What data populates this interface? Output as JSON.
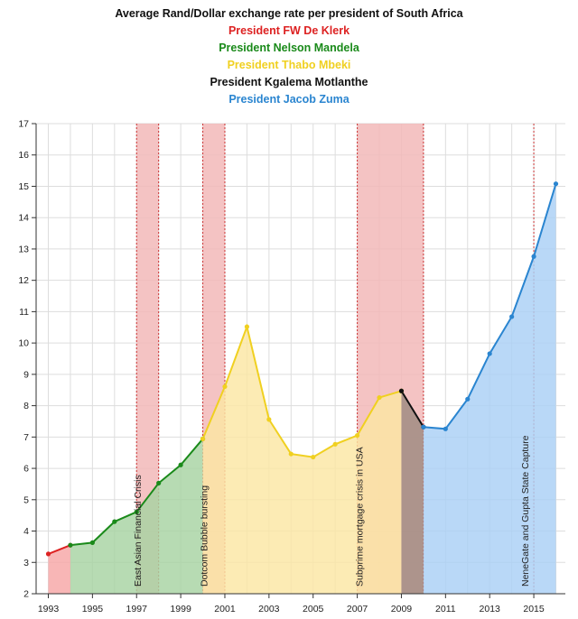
{
  "chart_data": {
    "type": "area",
    "title": "Average Rand/Dollar exchange rate per president of South Africa",
    "xlabel": "",
    "ylabel": "",
    "xlim": [
      1993,
      2016
    ],
    "ylim": [
      2,
      17
    ],
    "y_ticks": [
      2,
      3,
      4,
      5,
      6,
      7,
      8,
      9,
      10,
      11,
      12,
      13,
      14,
      15,
      16,
      17
    ],
    "x_ticks": [
      1993,
      1995,
      1997,
      1999,
      2001,
      2003,
      2005,
      2007,
      2009,
      2011,
      2013,
      2015
    ],
    "grid": true,
    "legend_placement": "top-center",
    "series": [
      {
        "name": "President FW De Klerk",
        "color": "#dd2222",
        "fill": "#f6a6a6",
        "x": [
          1993,
          1994
        ],
        "values": [
          3.27,
          3.55
        ]
      },
      {
        "name": "President Nelson Mandela",
        "color": "#1a8a1a",
        "fill": "#a7d3a2",
        "x": [
          1994,
          1995,
          1996,
          1997,
          1998,
          1999,
          2000
        ],
        "values": [
          3.55,
          3.63,
          4.3,
          4.61,
          5.53,
          6.11,
          6.94
        ]
      },
      {
        "name": "President Thabo Mbeki",
        "color": "#f0d020",
        "fill": "#fbe7a3",
        "x": [
          2000,
          2001,
          2002,
          2003,
          2004,
          2005,
          2006,
          2007,
          2008,
          2009
        ],
        "values": [
          6.94,
          8.61,
          10.52,
          7.56,
          6.46,
          6.36,
          6.77,
          7.05,
          8.26,
          8.47
        ]
      },
      {
        "name": "President Kgalema Motlanthe",
        "color": "#111111",
        "fill": "#9e8a80",
        "x": [
          2009,
          2010
        ],
        "values": [
          8.47,
          7.32
        ]
      },
      {
        "name": "President Jacob Zuma",
        "color": "#2a85d0",
        "fill": "#a9cff5",
        "x": [
          2010,
          2011,
          2012,
          2013,
          2014,
          2015,
          2016
        ],
        "values": [
          7.32,
          7.26,
          8.21,
          9.66,
          10.84,
          12.76,
          15.08
        ]
      }
    ],
    "annotations": [
      {
        "label": "East Asian Financial Crisis",
        "x_start": 1997,
        "x_end": 1998
      },
      {
        "label": "Dotcom Bubble bursting",
        "x_start": 2000,
        "x_end": 2001
      },
      {
        "label": "Subprime mortgage crisis in USA",
        "x_start": 2007,
        "x_end": 2010
      },
      {
        "label": "NeneGate and Gupta State Capture",
        "x_start": 2015,
        "x_end": 2015
      }
    ],
    "colors": {
      "band_fill": "#f2b8b8",
      "band_edge": "#cc3333",
      "grid": "#dddddd",
      "axis": "#333333"
    }
  }
}
